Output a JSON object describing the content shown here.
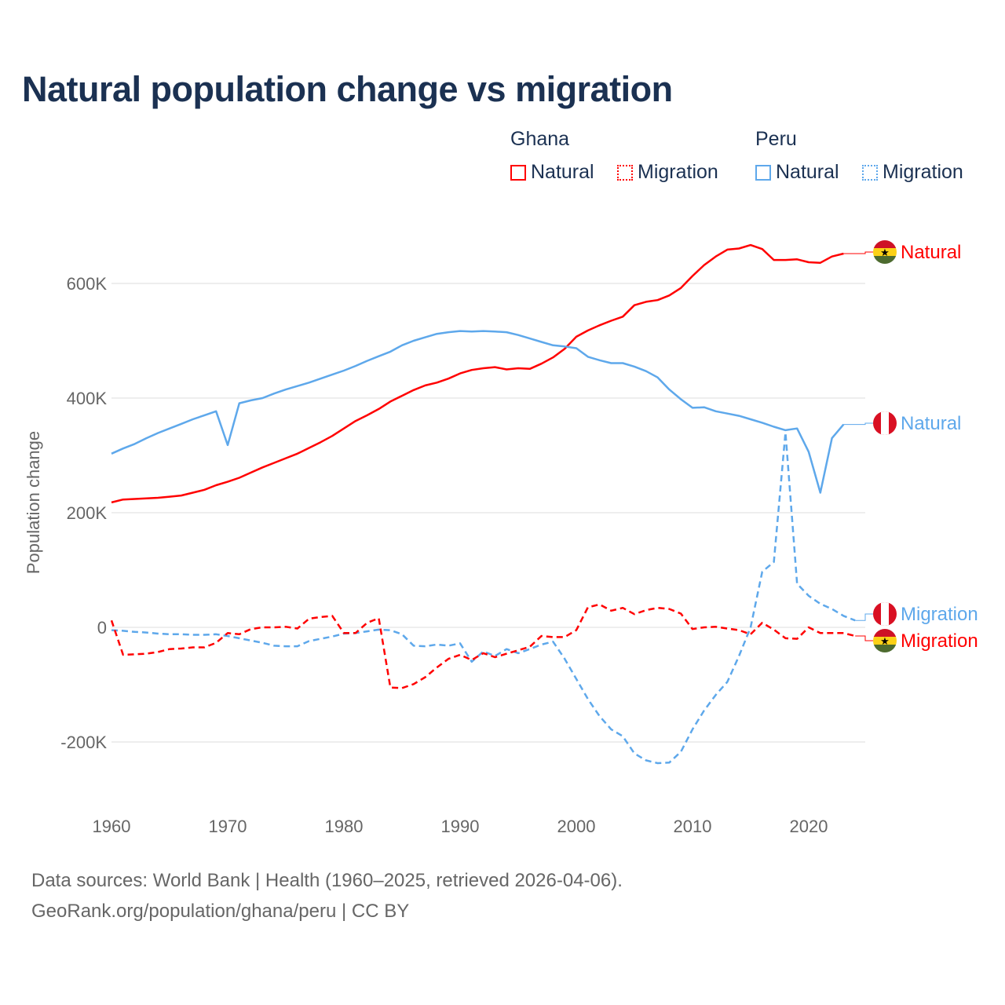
{
  "chart_data": {
    "type": "line",
    "title": "Natural population change vs migration",
    "xlabel": "",
    "ylabel": "Population change",
    "xlim": [
      1960,
      2025
    ],
    "ylim": [
      -300000,
      700000
    ],
    "x_ticks": [
      "1960",
      "1970",
      "1980",
      "1990",
      "2000",
      "2010",
      "2020"
    ],
    "y_ticks": [
      {
        "v": -200000,
        "label": "-200K"
      },
      {
        "v": 0,
        "label": "0"
      },
      {
        "v": 200000,
        "label": "200K"
      },
      {
        "v": 400000,
        "label": "400K"
      },
      {
        "v": 600000,
        "label": "600K"
      }
    ],
    "grid": true,
    "legend": {
      "placement": "top-right",
      "groups": [
        {
          "name": "Ghana",
          "items": [
            "Natural",
            "Migration"
          ]
        },
        {
          "name": "Peru",
          "items": [
            "Natural",
            "Migration"
          ]
        }
      ]
    },
    "start_year": 1960,
    "series": [
      {
        "name": "Ghana Natural",
        "country": "Ghana",
        "kind": "Natural",
        "color": "#ff0000",
        "dashed": false,
        "end_label": "Natural",
        "values_k": [
          218,
          223,
          224,
          225,
          226,
          228,
          230,
          235,
          240,
          248,
          254,
          261,
          270,
          279,
          287,
          295,
          303,
          313,
          323,
          334,
          347,
          360,
          370,
          381,
          394,
          404,
          414,
          422,
          427,
          434,
          443,
          449,
          452,
          454,
          450,
          452,
          451,
          460,
          471,
          486,
          507,
          518,
          527,
          535,
          542,
          562,
          568,
          571,
          579,
          592,
          613,
          632,
          647,
          659,
          661,
          667,
          660,
          641,
          641,
          642,
          637,
          636,
          647,
          652
        ]
      },
      {
        "name": "Peru Natural",
        "country": "Peru",
        "kind": "Natural",
        "color": "#5ea8eb",
        "dashed": false,
        "end_label": "Natural",
        "values_k": [
          303,
          312,
          320,
          330,
          339,
          347,
          355,
          363,
          370,
          377,
          318,
          391,
          396,
          400,
          408,
          415,
          421,
          427,
          434,
          441,
          448,
          456,
          465,
          473,
          481,
          492,
          500,
          506,
          512,
          515,
          517,
          516,
          517,
          516,
          515,
          510,
          504,
          498,
          492,
          490,
          487,
          472,
          466,
          461,
          461,
          455,
          447,
          436,
          415,
          398,
          383,
          384,
          377,
          373,
          369,
          363,
          357,
          350,
          344,
          347,
          306,
          235,
          330,
          354
        ]
      },
      {
        "name": "Peru Migration",
        "country": "Peru",
        "kind": "Migration",
        "color": "#5ea8eb",
        "dashed": true,
        "end_label": "Migration",
        "values_k": [
          -5,
          -6,
          -8,
          -9,
          -11,
          -12,
          -12,
          -13,
          -13,
          -12,
          -15,
          -19,
          -23,
          -27,
          -32,
          -33,
          -33,
          -24,
          -20,
          -16,
          -11,
          -10,
          -7,
          -4,
          -5,
          -12,
          -32,
          -33,
          -30,
          -32,
          -28,
          -60,
          -42,
          -50,
          -38,
          -45,
          -38,
          -30,
          -25,
          -55,
          -90,
          -125,
          -155,
          -178,
          -190,
          -220,
          -232,
          -237,
          -236,
          -217,
          -178,
          -145,
          -118,
          -95,
          -50,
          0,
          97,
          114,
          340,
          76,
          55,
          41,
          32,
          20,
          12
        ]
      },
      {
        "name": "Ghana Migration",
        "country": "Ghana",
        "kind": "Migration",
        "color": "#ff0000",
        "dashed": true,
        "end_label": "Migration",
        "values_k": [
          12,
          -48,
          -47,
          -46,
          -43,
          -38,
          -37,
          -35,
          -35,
          -27,
          -10,
          -12,
          -3,
          0,
          0,
          1,
          -2,
          15,
          18,
          20,
          -10,
          -10,
          8,
          16,
          -105,
          -106,
          -99,
          -87,
          -70,
          -55,
          -48,
          -57,
          -45,
          -52,
          -46,
          -40,
          -34,
          -15,
          -17,
          -17,
          -5,
          35,
          40,
          29,
          34,
          23,
          30,
          34,
          32,
          24,
          -3,
          0,
          1,
          -2,
          -5,
          -12,
          8,
          -4,
          -19,
          -20,
          0,
          -10,
          -10,
          -10,
          -15
        ]
      }
    ]
  },
  "footer": {
    "line1": "Data sources: World Bank | Health (1960–2025, retrieved 2026-04-06).",
    "line2": "GeoRank.org/population/ghana/peru | CC BY"
  }
}
